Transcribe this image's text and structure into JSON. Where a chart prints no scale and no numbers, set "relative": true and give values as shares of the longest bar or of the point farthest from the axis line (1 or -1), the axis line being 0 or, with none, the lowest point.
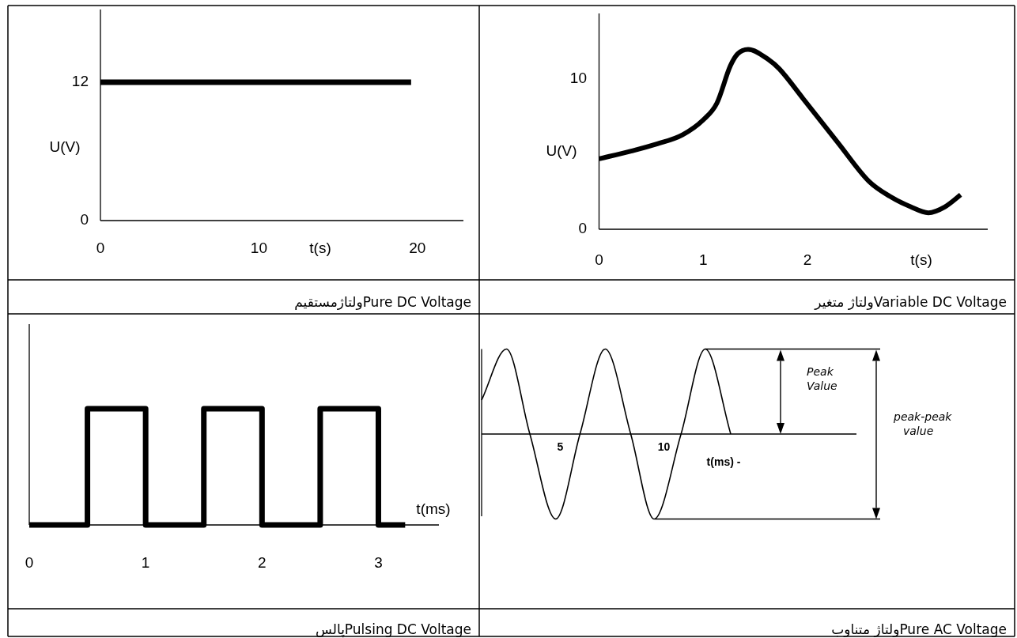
{
  "chart_data": [
    {
      "type": "line",
      "title": "Pure DC Voltageولتاژمستقیم",
      "xlabel": "t(s)",
      "ylabel": "U(V)",
      "color": "#000000",
      "x": [
        0,
        19.6
      ],
      "values": [
        12,
        12
      ],
      "xlim": [
        0,
        22.9
      ],
      "ylim": [
        0,
        18.3
      ],
      "xticks": [
        0,
        10,
        20
      ],
      "yticks": [
        0,
        12
      ]
    },
    {
      "type": "line",
      "title": "Variable DC Voltageولتاژ متغیر",
      "xlabel": "t(s)",
      "ylabel": "U(V)",
      "color": "#000000",
      "x": [
        0,
        0.3,
        0.56,
        0.8,
        1.0,
        1.13,
        1.26,
        1.33,
        1.43,
        1.63,
        1.73,
        1.96,
        2.29,
        2.59,
        2.79,
        2.99,
        3.16,
        3.32,
        3.47
      ],
      "values": [
        4.7,
        5.2,
        5.7,
        6.3,
        7.3,
        8.4,
        10.9,
        11.7,
        12.0,
        11.3,
        10.7,
        8.7,
        5.8,
        3.2,
        2.2,
        1.5,
        1.1,
        1.5,
        2.3
      ],
      "xlim": [
        0,
        3.73
      ],
      "ylim": [
        0,
        14.4
      ],
      "xticks": [
        0,
        1,
        2
      ],
      "yticks": [
        0,
        10
      ]
    },
    {
      "type": "line",
      "title": "Pulsing DC Voltageپالس",
      "xlabel": "t(ms)",
      "color": "#000000",
      "relative": true,
      "x": [
        0,
        0.5,
        0.5,
        1,
        1,
        1.5,
        1.5,
        2,
        2,
        2.5,
        2.5,
        3,
        3,
        3.23
      ],
      "values": [
        0,
        0,
        1,
        1,
        0,
        0,
        1,
        1,
        0,
        0,
        1,
        1,
        0,
        0
      ],
      "xlim": [
        0,
        3.52
      ],
      "xticks": [
        0,
        1,
        2,
        3
      ]
    },
    {
      "type": "line",
      "title": "Pure AC Voltageولتاژ متناوب",
      "xlabel": "t(ms) -",
      "color": "#000000",
      "relative": true,
      "x": [
        1.2,
        2.4,
        3.53,
        4.78,
        5.95,
        7.17,
        8.4,
        9.53,
        10.83,
        12.0,
        13.23
      ],
      "values": [
        0.4,
        1,
        0,
        -1,
        0,
        1,
        0,
        -1,
        0,
        1,
        0
      ],
      "xlim": [
        1.2,
        19.3
      ],
      "xticks": [
        5,
        10
      ],
      "annotations": [
        "Peak Value",
        "peak-peak value"
      ]
    }
  ]
}
